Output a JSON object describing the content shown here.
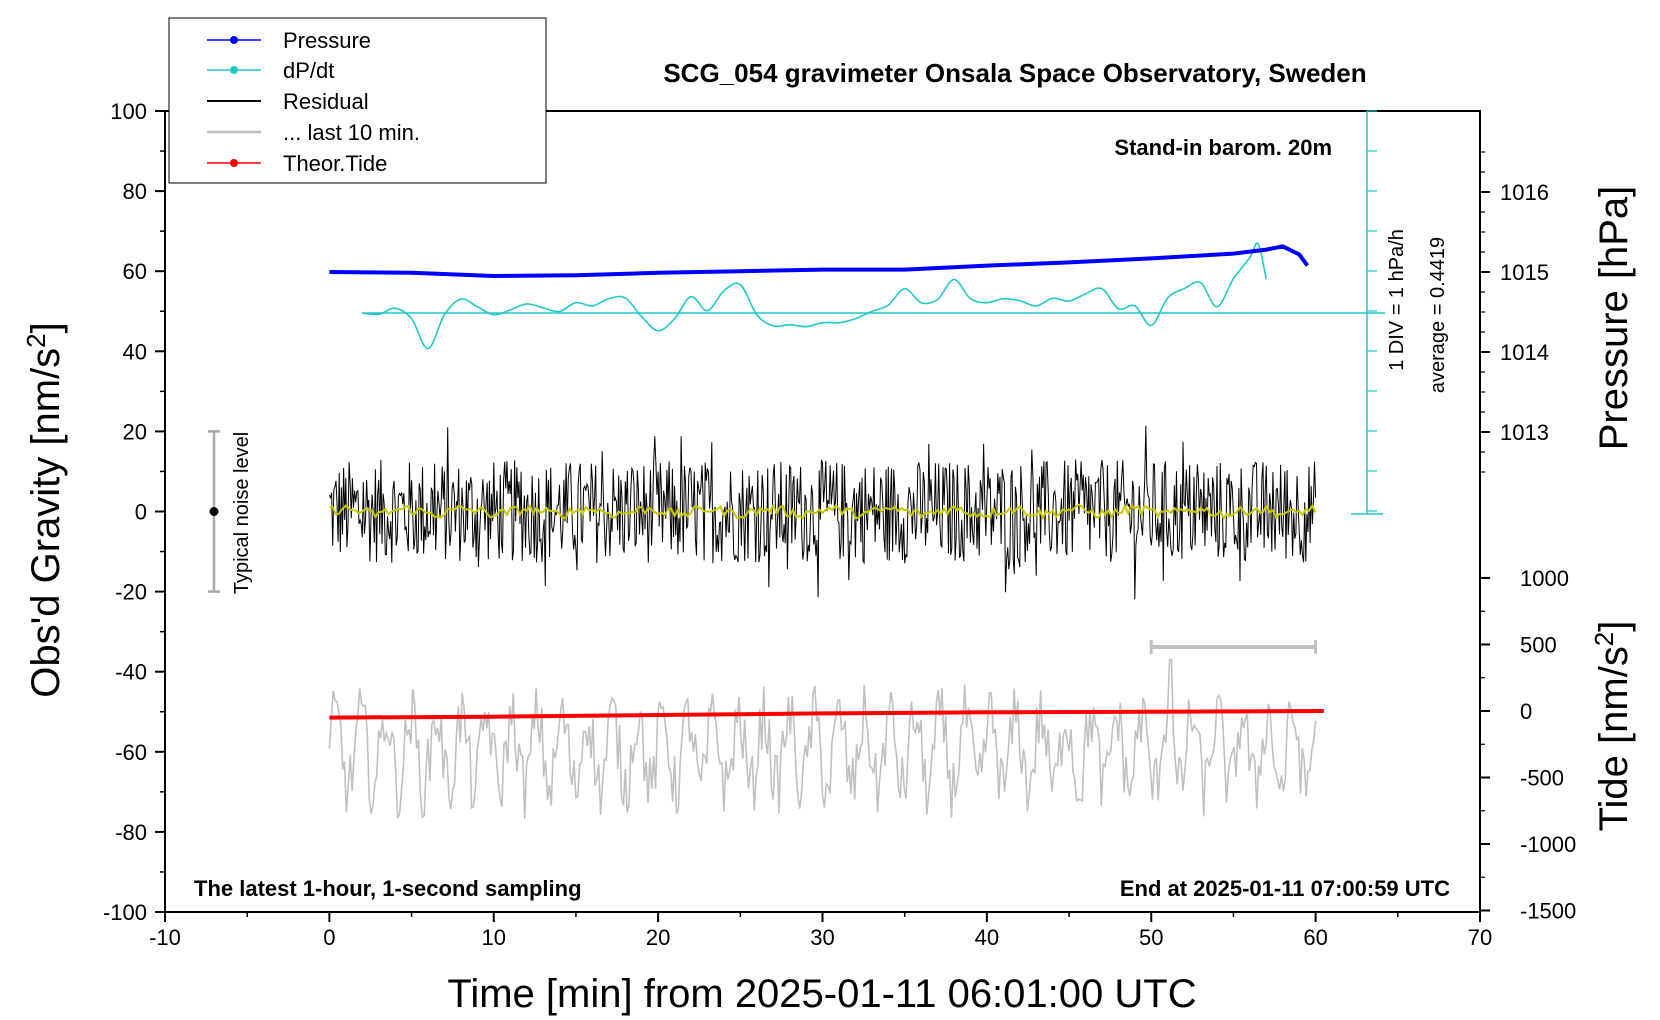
{
  "colors": {
    "pressure": "#0000ff",
    "dpdt": "#20c8c8",
    "residual": "#000000",
    "last10": "#c0c0c0",
    "tide": "#ff0000",
    "smooth": "#c8c800"
  },
  "chart_data": {
    "type": "line",
    "title": "SCG_054 gravimeter Onsala Space Observatory, Sweden",
    "xlabel": "Time [min] from 2025-01-11 06:01:00 UTC",
    "xlim": [
      -10,
      70
    ],
    "xticks": [
      "-10",
      "0",
      "10",
      "20",
      "30",
      "40",
      "50",
      "60",
      "70"
    ],
    "left_axis": {
      "label": "Obs'd Gravity [nm/s",
      "label_sup": "2",
      "label_end": "]",
      "ylim": [
        -100,
        100
      ],
      "ticks": [
        "100",
        "80",
        "60",
        "40",
        "20",
        "0",
        "-20",
        "-40",
        "-60",
        "-80",
        "-100"
      ]
    },
    "pressure_axis": {
      "label": "Pressure [hPa]",
      "ticks": [
        "1016",
        "1015",
        "1014",
        "1013"
      ]
    },
    "tide_axis": {
      "label": "Tide [nm/s",
      "label_sup": "2",
      "label_end": "]",
      "ticks": [
        "1000",
        "500",
        "0",
        "-500",
        "-1000",
        "-1500"
      ]
    },
    "legend": {
      "position": "top-left",
      "entries": [
        "Pressure",
        "dP/dt",
        "Residual",
        "... last 10 min.",
        "Theor.Tide"
      ]
    },
    "annotations": {
      "barometer": "Stand-in barom. 20m",
      "div": "1 DIV = 1 hPa/h",
      "average": "average = 0.4419",
      "noise": "Typical noise level",
      "bottom_left": "The latest 1-hour, 1-second sampling",
      "bottom_right": "End at 2025-01-11 07:00:59 UTC"
    },
    "series": [
      {
        "name": "Pressure",
        "unit": "hPa",
        "x": [
          0,
          5,
          10,
          15,
          20,
          25,
          30,
          35,
          40,
          45,
          50,
          55,
          57,
          58,
          59,
          59.5
        ],
        "y": [
          1015.0,
          1014.99,
          1014.95,
          1014.96,
          1014.99,
          1015.01,
          1015.03,
          1015.03,
          1015.08,
          1015.12,
          1015.17,
          1015.23,
          1015.28,
          1015.32,
          1015.22,
          1015.08
        ]
      },
      {
        "name": "dP/dt",
        "unit": "hPa/h",
        "baseline": 0.4419,
        "x": [
          2,
          3,
          4,
          5,
          6,
          7,
          8,
          9,
          10,
          11,
          12,
          13,
          14,
          15,
          16,
          17,
          18,
          19,
          20,
          21,
          22,
          23,
          24,
          25,
          26,
          27,
          28,
          29,
          30,
          31,
          32,
          33,
          34,
          35,
          36,
          37,
          38,
          39,
          40,
          41,
          42,
          43,
          44,
          45,
          46,
          47,
          48,
          49,
          50,
          51,
          52,
          53,
          54,
          55,
          56,
          56.5,
          57
        ],
        "y": [
          0.44,
          0.41,
          0.56,
          0.3,
          -0.45,
          0.4,
          0.79,
          0.6,
          0.4,
          0.52,
          0.67,
          0.57,
          0.48,
          0.7,
          0.62,
          0.8,
          0.82,
          0.35,
          0.0,
          0.3,
          0.85,
          0.5,
          1.0,
          1.15,
          0.4,
          0.12,
          0.15,
          0.1,
          0.2,
          0.2,
          0.3,
          0.48,
          0.64,
          1.05,
          0.7,
          0.78,
          1.28,
          0.8,
          0.7,
          0.8,
          0.75,
          0.62,
          0.81,
          0.74,
          0.92,
          1.05,
          0.55,
          0.62,
          0.13,
          0.82,
          1.05,
          1.2,
          0.6,
          1.3,
          1.83,
          2.17,
          1.28
        ]
      },
      {
        "name": "Residual",
        "unit": "nm/s^2",
        "x_range": [
          0,
          60
        ],
        "envelope": [
          -22,
          25
        ],
        "typical_noise": 20
      },
      {
        "name": "... last 10 min.",
        "unit": "nm/s^2",
        "x_range": [
          0,
          60
        ],
        "offset": -60,
        "envelope": [
          -82,
          -37
        ]
      },
      {
        "name": "Theor.Tide",
        "unit": "nm/s^2",
        "x": [
          0,
          10,
          20,
          30,
          40,
          50,
          60.5
        ],
        "y": [
          -50,
          -43,
          -30,
          -18,
          -10,
          -5,
          0
        ]
      }
    ]
  }
}
